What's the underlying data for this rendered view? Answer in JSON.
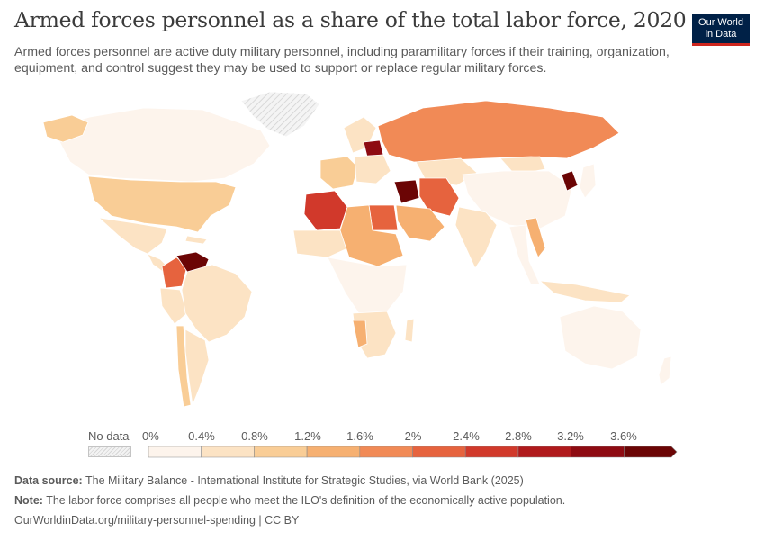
{
  "header": {
    "title": "Armed forces personnel as a share of the total labor force, 2020",
    "subtitle": "Armed forces personnel are active duty military personnel, including paramilitary forces if their training, organization, equipment, and control suggest they may be used to support or replace regular military forces.",
    "logo_line1": "Our World",
    "logo_line2": "in Data"
  },
  "legend": {
    "no_data_label": "No data",
    "ticks": [
      "0%",
      "0.4%",
      "0.8%",
      "1.2%",
      "1.6%",
      "2%",
      "2.4%",
      "2.8%",
      "3.2%",
      "3.6%"
    ],
    "colors": [
      "#fdf4ec",
      "#fce3c4",
      "#f9cd96",
      "#f6b071",
      "#f18a56",
      "#e6633e",
      "#d1392b",
      "#b01a1c",
      "#8e0b12",
      "#6b0505"
    ],
    "no_data_color": "#e2e2e2"
  },
  "footer": {
    "source_label": "Data source:",
    "source_text": "The Military Balance - International Institute for Strategic Studies, via World Bank (2025)",
    "note_label": "Note:",
    "note_text": "The labor force comprises all people who meet the ILO's definition of the economically active population.",
    "url_text": "OurWorldinData.org/military-personnel-spending | CC BY"
  },
  "map_data": {
    "unit": "%",
    "regions": [
      {
        "name": "Canada",
        "value": 0.2
      },
      {
        "name": "United States",
        "value": 0.9
      },
      {
        "name": "Mexico",
        "value": 0.5
      },
      {
        "name": "Colombia",
        "value": 2.0
      },
      {
        "name": "Venezuela",
        "value": 3.6
      },
      {
        "name": "Brazil",
        "value": 0.4
      },
      {
        "name": "Chile",
        "value": 0.9
      },
      {
        "name": "Argentina",
        "value": 0.4
      },
      {
        "name": "Peru",
        "value": 0.7
      },
      {
        "name": "Greenland",
        "value": null
      },
      {
        "name": "Russia",
        "value": 1.7
      },
      {
        "name": "Belarus",
        "value": 3.5
      },
      {
        "name": "Algeria",
        "value": 2.6
      },
      {
        "name": "Egypt",
        "value": 2.3
      },
      {
        "name": "Syria",
        "value": 3.8
      },
      {
        "name": "Iran",
        "value": 2.1
      },
      {
        "name": "Saudi Arabia",
        "value": 1.3
      },
      {
        "name": "North Korea",
        "value": 3.8
      },
      {
        "name": "China",
        "value": 0.3
      },
      {
        "name": "India",
        "value": 0.5
      },
      {
        "name": "Vietnam",
        "value": 1.4
      },
      {
        "name": "Australia",
        "value": 0.3
      },
      {
        "name": "Namibia",
        "value": 1.5
      },
      {
        "name": "Mongolia",
        "value": 0.6
      },
      {
        "name": "Kazakhstan",
        "value": 0.5
      }
    ]
  }
}
